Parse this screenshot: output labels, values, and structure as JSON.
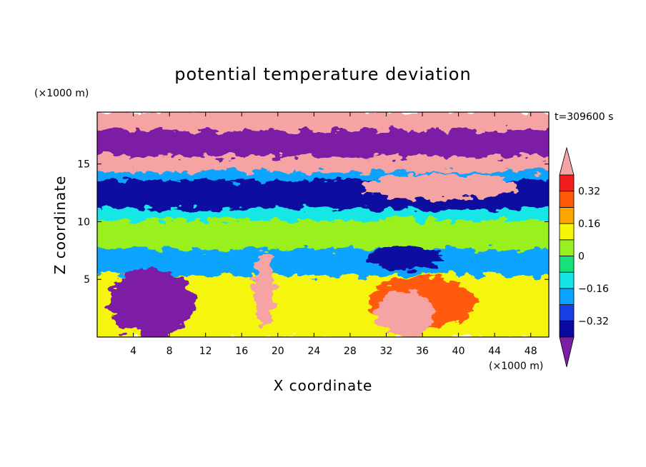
{
  "chart_data": {
    "type": "heatmap",
    "title": "potential temperature deviation",
    "xlabel": "X coordinate",
    "ylabel": "Z coordinate",
    "x_unit": "(×1000 m)",
    "y_unit": "(×1000 m)",
    "time_label": "t=309600 s",
    "xlim": [
      0,
      50
    ],
    "ylim": [
      0,
      19.5
    ],
    "x_ticks": [
      4,
      8,
      12,
      16,
      20,
      24,
      28,
      32,
      36,
      40,
      44,
      48
    ],
    "y_ticks": [
      5,
      10,
      15
    ],
    "colorbar": {
      "levels": [
        -0.4,
        -0.32,
        -0.24,
        -0.16,
        -0.08,
        0,
        0.08,
        0.16,
        0.24,
        0.32,
        0.4
      ],
      "tick_labels": [
        {
          "value": 0.32,
          "label": "0.32"
        },
        {
          "value": 0.16,
          "label": "0.16"
        },
        {
          "value": 0,
          "label": "0"
        },
        {
          "value": -0.16,
          "label": "−0.16"
        },
        {
          "value": -0.32,
          "label": "−0.32"
        }
      ],
      "under_color": "#7d1fa5",
      "over_color": "#f5a3a3",
      "band_colors": [
        "#0a0aa0",
        "#1a3ee6",
        "#0aa4ff",
        "#14e6e6",
        "#16e07a",
        "#9af01e",
        "#f5f50a",
        "#ffa500",
        "#ff5a0a",
        "#f01e1e"
      ]
    },
    "layers": [
      {
        "z_range": [
          17.8,
          19.5
        ],
        "value": 0.45
      },
      {
        "z_range": [
          15.5,
          17.8
        ],
        "value": -0.45
      },
      {
        "z_range": [
          14.2,
          15.5
        ],
        "value": 0.4
      },
      {
        "z_range": [
          13.5,
          14.2
        ],
        "value": -0.2
      },
      {
        "z_range": [
          11.0,
          13.5
        ],
        "value": -0.35
      },
      {
        "z_range": [
          10.0,
          11.0
        ],
        "value": -0.12
      },
      {
        "z_range": [
          7.5,
          10.0
        ],
        "value": 0.04
      },
      {
        "z_range": [
          5.2,
          7.5
        ],
        "value": -0.2
      },
      {
        "z_range": [
          0,
          5.2
        ],
        "value": 0.1
      }
    ],
    "features": [
      {
        "x": 25,
        "z": 12.3,
        "value": -0.35
      },
      {
        "x": 38,
        "z": 13.0,
        "value": 0.45
      },
      {
        "x": 34,
        "z": 6.8,
        "value": -0.4
      },
      {
        "x": 6,
        "z": 3.0,
        "value": -0.45
      },
      {
        "x": 36,
        "z": 3.0,
        "value": 0.3
      },
      {
        "x": 34,
        "z": 2.0,
        "value": 0.45
      },
      {
        "x": 18.5,
        "z": 4.0,
        "value": 0.45
      }
    ]
  }
}
